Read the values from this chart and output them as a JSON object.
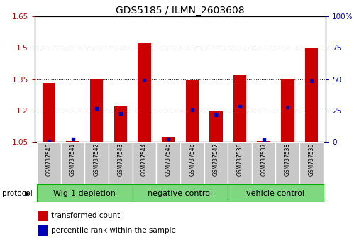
{
  "title": "GDS5185 / ILMN_2603608",
  "samples": [
    "GSM737540",
    "GSM737541",
    "GSM737542",
    "GSM737543",
    "GSM737544",
    "GSM737545",
    "GSM737546",
    "GSM737547",
    "GSM737536",
    "GSM737537",
    "GSM737538",
    "GSM737539"
  ],
  "red_values": [
    1.33,
    1.052,
    1.35,
    1.22,
    1.525,
    1.073,
    1.345,
    1.196,
    1.37,
    1.052,
    1.352,
    1.5
  ],
  "blue_values": [
    1.052,
    1.065,
    1.21,
    1.187,
    1.345,
    1.065,
    1.203,
    1.178,
    1.22,
    1.06,
    1.215,
    1.342
  ],
  "ylim_left": [
    1.05,
    1.65
  ],
  "ylim_right": [
    0,
    100
  ],
  "yticks_left": [
    1.05,
    1.2,
    1.35,
    1.5,
    1.65
  ],
  "yticks_right": [
    0,
    25,
    50,
    75,
    100
  ],
  "ytick_labels_left": [
    "1.05",
    "1.2",
    "1.35",
    "1.5",
    "1.65"
  ],
  "ytick_labels_right": [
    "0",
    "25",
    "50",
    "75",
    "100%"
  ],
  "grid_lines": [
    1.2,
    1.35,
    1.5
  ],
  "groups": [
    {
      "label": "Wig-1 depletion",
      "start": 0,
      "end": 3
    },
    {
      "label": "negative control",
      "start": 4,
      "end": 7
    },
    {
      "label": "vehicle control",
      "start": 8,
      "end": 11
    }
  ],
  "group_color": "#7FD87F",
  "group_border_color": "#00AA00",
  "bar_width": 0.55,
  "bar_bottom": 1.05,
  "red_color": "#CC0000",
  "blue_color": "#0000BB",
  "sample_bg": "#C8C8C8",
  "sample_border": "#888888",
  "white": "#FFFFFF",
  "black": "#000000"
}
